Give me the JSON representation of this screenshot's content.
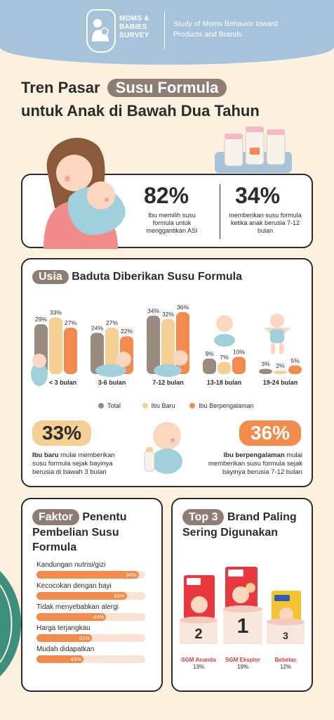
{
  "header": {
    "logo_line1": "MOMS &",
    "logo_line2": "BABIES",
    "logo_line3": "SURVEY",
    "tagline": "Study of Moms Behavior toward Products and Brands"
  },
  "title": {
    "prefix": "Tren Pasar",
    "highlight": "Susu Formula",
    "line2": "untuk Anak di Bawah Dua Tahun"
  },
  "stats": [
    {
      "value": "82%",
      "text": "Ibu memilih susu formula untuk menggantikan ASI"
    },
    {
      "value": "34%",
      "text": "memberikan susu formula ketika anak berusia 7-12 bulan"
    }
  ],
  "chart_data": [
    {
      "type": "bar",
      "title": "Baduta Diberikan Susu Formula",
      "title_pill": "Usia",
      "categories": [
        "< 3 bulan",
        "3-6 bulan",
        "7-12 bulan",
        "13-18 bulan",
        "19-24 bulan"
      ],
      "series": [
        {
          "name": "Total",
          "color": "#9a8a80",
          "values": [
            29,
            24,
            34,
            9,
            3
          ]
        },
        {
          "name": "Ibu Baru",
          "color": "#f6cf95",
          "values": [
            33,
            27,
            32,
            7,
            2
          ]
        },
        {
          "name": "Ibu Berpengalaman",
          "color": "#f28b4b",
          "values": [
            27,
            22,
            36,
            10,
            5
          ]
        }
      ],
      "ylim": [
        0,
        36
      ],
      "legend": "bottom"
    },
    {
      "type": "bar",
      "title_pill": "Faktor",
      "title": "Penentu Pembelian Susu Formula",
      "categories": [
        "Kandungan nutrisi/gizi",
        "Kecocokan dengan bayi",
        "Tidak menyebabkan alergi",
        "Harga terjangkau",
        "Mudah didapatkan"
      ],
      "values": [
        94,
        83,
        64,
        51,
        43
      ],
      "value_labels": [
        "94%",
        "83%",
        "64%",
        "51%",
        "43%"
      ],
      "ylim": [
        0,
        100
      ]
    },
    {
      "type": "bar",
      "title_pill": "Top 3",
      "title": "Brand Paling Sering Digunakan",
      "categories": [
        "SGM Ananda",
        "SGM Eksplor",
        "Bebelac"
      ],
      "ranks": [
        "2",
        "1",
        "3"
      ],
      "values": [
        13,
        19,
        12
      ],
      "value_labels": [
        "13%",
        "19%",
        "12%"
      ]
    }
  ],
  "highlights": [
    {
      "value": "33%",
      "bold": "Ibu baru",
      "text": " mulai memberikan susu formula sejak bayinya berusia di bawah 3 bulan",
      "color": "#f6cf95"
    },
    {
      "value": "36%",
      "bold": "Ibu berpengalaman",
      "text": " mulai memberikan susu formula sejak bayinya berusia 7-12 bulan",
      "color": "#f28b4b"
    }
  ],
  "colors": {
    "accent": "#f28b4b",
    "pill": "#8d7d74",
    "header": "#a7c3dc",
    "background": "#fbf1de"
  }
}
